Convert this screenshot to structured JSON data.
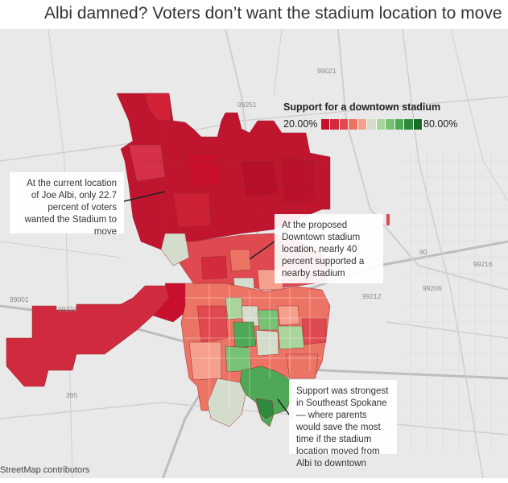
{
  "title": "Albi damned? Voters don’t want the stadium location to move",
  "legend": {
    "title": "Support for a downtown stadium",
    "min_label": "20.00%",
    "max_label": "80.00%",
    "colors": [
      "#c8102e",
      "#d32a3c",
      "#e0494f",
      "#ec7464",
      "#f4a08c",
      "#d4dccb",
      "#a9d49c",
      "#78c273",
      "#4ea855",
      "#2d8a3e",
      "#1a6a2a"
    ]
  },
  "annotations": {
    "albi": "At the current location of Joe Albi, only 22.7 percent of voters wanted the Stadium to move",
    "downtown": "At the proposed Downtown stadium location, nearly 40 percent supported a nearby stadium",
    "southeast": "Support was strongest in Southeast Spokane — where parents would save the most time if the stadium location moved from Albi to downtown"
  },
  "road_labels": [
    "99021",
    "99251",
    "99216",
    "99206",
    "99212",
    "99001",
    "99224",
    "395",
    "90"
  ],
  "attribution": "StreetMap contributors",
  "values_shown": {
    "albi_support_pct": 22.7,
    "downtown_support_pct": 40
  },
  "colors": {
    "low": "#c8102e",
    "mid": "#d4dccb",
    "high": "#1a6a2a",
    "map_background": "#e9e9e9"
  }
}
